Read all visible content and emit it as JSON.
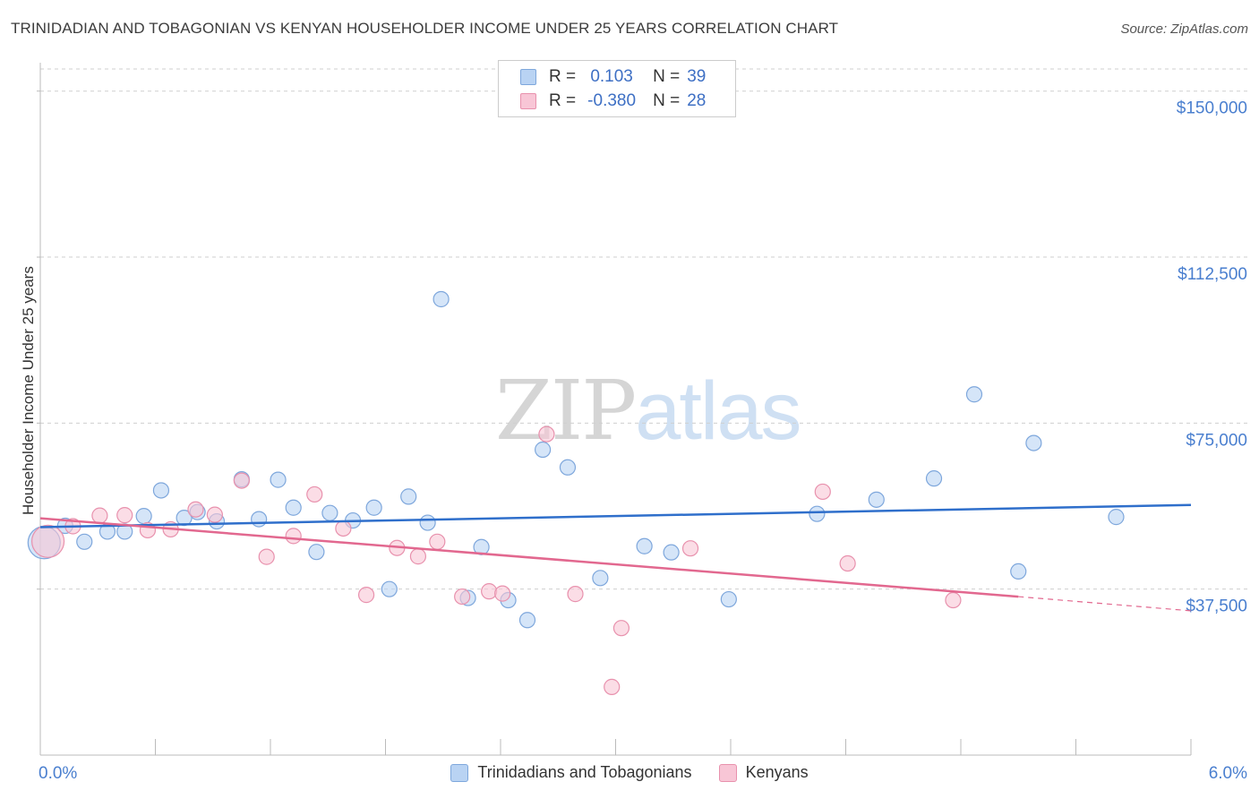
{
  "title": "TRINIDADIAN AND TOBAGONIAN VS KENYAN HOUSEHOLDER INCOME UNDER 25 YEARS CORRELATION CHART",
  "source": "Source: ZipAtlas.com",
  "watermark": {
    "zip": "ZIP",
    "atlas": "atlas"
  },
  "legend": {
    "rows": [
      {
        "r_label": "R =",
        "r_value": "0.103",
        "n_label": "N =",
        "n_value": "39"
      },
      {
        "r_label": "R =",
        "r_value": "-0.380",
        "n_label": "N =",
        "n_value": "28"
      }
    ]
  },
  "colors": {
    "blue_fill": "#b9d3f3",
    "blue_stroke": "#7ea7dc",
    "blue_line": "#2f6fcb",
    "pink_fill": "#f8c6d6",
    "pink_stroke": "#e891ad",
    "pink_line": "#e2688f",
    "axis_label": "#4a7fcf",
    "grid": "#cfcfcf"
  },
  "chart_data": {
    "type": "scatter",
    "title": "TRINIDADIAN AND TOBAGONIAN VS KENYAN HOUSEHOLDER INCOME UNDER 25 YEARS CORRELATION CHART",
    "xlabel": "",
    "ylabel": "Householder Income Under 25 years",
    "xlim": [
      0,
      6
    ],
    "ylim": [
      0,
      155000
    ],
    "x_tick_labels": [
      "0.0%",
      "6.0%"
    ],
    "y_ticks": [
      37500,
      75000,
      112500,
      150000
    ],
    "y_tick_labels": [
      "$37,500",
      "$75,000",
      "$112,500",
      "$150,000"
    ],
    "grid": true,
    "legend_position": "bottom",
    "series": [
      {
        "name": "Trinidadians and Tobagonians",
        "color": "#b9d3f3",
        "trend": {
          "x": [
            0.0,
            6.0
          ],
          "y": [
            51500,
            56500
          ]
        },
        "points": [
          {
            "x": 0.02,
            "y": 48000,
            "big": true
          },
          {
            "x": 0.13,
            "y": 51800
          },
          {
            "x": 0.23,
            "y": 48200
          },
          {
            "x": 0.35,
            "y": 50500
          },
          {
            "x": 0.44,
            "y": 50500
          },
          {
            "x": 0.54,
            "y": 54000
          },
          {
            "x": 0.63,
            "y": 59800
          },
          {
            "x": 0.75,
            "y": 53600
          },
          {
            "x": 0.82,
            "y": 54900
          },
          {
            "x": 0.92,
            "y": 52800
          },
          {
            "x": 1.05,
            "y": 62300
          },
          {
            "x": 1.14,
            "y": 53300
          },
          {
            "x": 1.24,
            "y": 62200
          },
          {
            "x": 1.32,
            "y": 55900
          },
          {
            "x": 1.44,
            "y": 45900
          },
          {
            "x": 1.51,
            "y": 54700
          },
          {
            "x": 1.63,
            "y": 53000
          },
          {
            "x": 1.74,
            "y": 55900
          },
          {
            "x": 1.82,
            "y": 37500
          },
          {
            "x": 1.92,
            "y": 58400
          },
          {
            "x": 2.02,
            "y": 52500
          },
          {
            "x": 2.09,
            "y": 103000
          },
          {
            "x": 2.23,
            "y": 35500
          },
          {
            "x": 2.3,
            "y": 47000
          },
          {
            "x": 2.44,
            "y": 35000
          },
          {
            "x": 2.54,
            "y": 30500
          },
          {
            "x": 2.62,
            "y": 69000
          },
          {
            "x": 2.75,
            "y": 65000
          },
          {
            "x": 2.92,
            "y": 40000
          },
          {
            "x": 3.15,
            "y": 47200
          },
          {
            "x": 3.29,
            "y": 45800
          },
          {
            "x": 3.59,
            "y": 35200
          },
          {
            "x": 4.05,
            "y": 54500
          },
          {
            "x": 4.36,
            "y": 57700
          },
          {
            "x": 4.66,
            "y": 62500
          },
          {
            "x": 4.87,
            "y": 81500
          },
          {
            "x": 5.1,
            "y": 41500
          },
          {
            "x": 5.18,
            "y": 70500
          },
          {
            "x": 5.61,
            "y": 53800
          }
        ]
      },
      {
        "name": "Kenyans",
        "color": "#f8c6d6",
        "trend": {
          "x": [
            0.0,
            5.1
          ],
          "y": [
            53500,
            35800
          ]
        },
        "trend_dashed": {
          "x": [
            5.1,
            6.0
          ],
          "y": [
            35800,
            32600
          ]
        },
        "points": [
          {
            "x": 0.04,
            "y": 48300,
            "big": true
          },
          {
            "x": 0.17,
            "y": 51700
          },
          {
            "x": 0.31,
            "y": 54100
          },
          {
            "x": 0.44,
            "y": 54200
          },
          {
            "x": 0.56,
            "y": 50800
          },
          {
            "x": 0.68,
            "y": 51000
          },
          {
            "x": 0.81,
            "y": 55500
          },
          {
            "x": 0.91,
            "y": 54300
          },
          {
            "x": 1.05,
            "y": 62000
          },
          {
            "x": 1.18,
            "y": 44800
          },
          {
            "x": 1.32,
            "y": 49500
          },
          {
            "x": 1.43,
            "y": 58900
          },
          {
            "x": 1.58,
            "y": 51200
          },
          {
            "x": 1.7,
            "y": 36200
          },
          {
            "x": 1.86,
            "y": 46800
          },
          {
            "x": 1.97,
            "y": 44900
          },
          {
            "x": 2.07,
            "y": 48200
          },
          {
            "x": 2.2,
            "y": 35800
          },
          {
            "x": 2.34,
            "y": 37000
          },
          {
            "x": 2.41,
            "y": 36500
          },
          {
            "x": 2.64,
            "y": 72500
          },
          {
            "x": 2.79,
            "y": 36400
          },
          {
            "x": 3.03,
            "y": 28700
          },
          {
            "x": 2.98,
            "y": 15400
          },
          {
            "x": 3.39,
            "y": 46700
          },
          {
            "x": 4.08,
            "y": 59500
          },
          {
            "x": 4.21,
            "y": 43300
          },
          {
            "x": 4.76,
            "y": 35000
          }
        ]
      }
    ]
  }
}
